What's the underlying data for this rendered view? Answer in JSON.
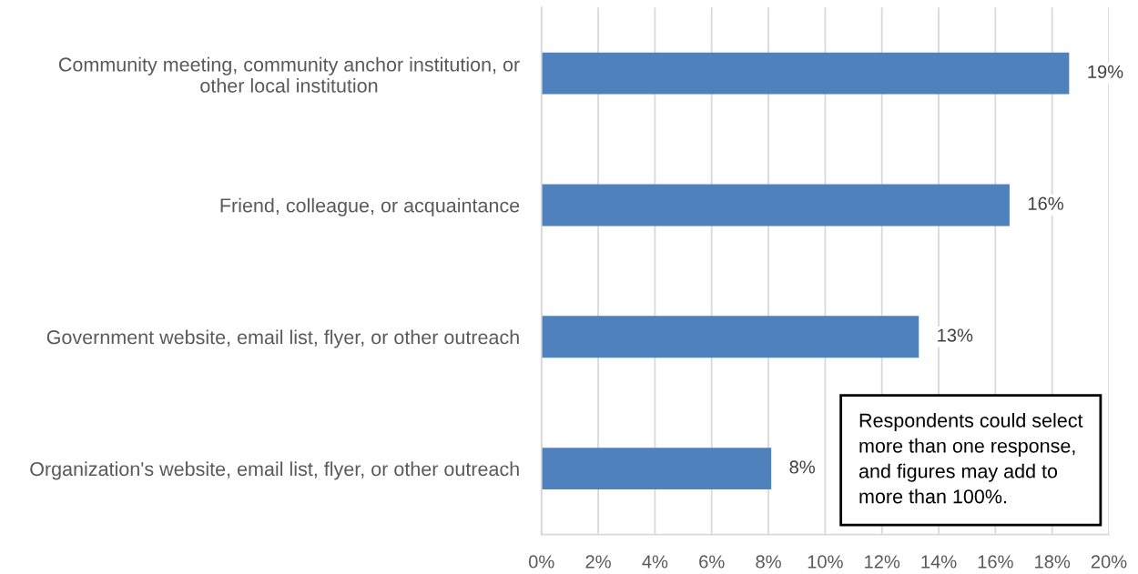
{
  "chart_data": {
    "type": "bar",
    "orientation": "horizontal",
    "categories": [
      "Community meeting, community anchor institution, or\nother local institution",
      "Friend, colleague, or acquaintance",
      "Government website, email list, flyer, or other outreach",
      "Organization's website, email list, flyer, or other outreach"
    ],
    "values": [
      18.6,
      16.5,
      13.3,
      8.1
    ],
    "value_labels": [
      "19%",
      "16%",
      "13%",
      "8%"
    ],
    "color": "#4f81bd",
    "xlim": [
      0,
      20
    ],
    "xticks": [
      {
        "value": 0,
        "label": "0%"
      },
      {
        "value": 2,
        "label": "2%"
      },
      {
        "value": 4,
        "label": "4%"
      },
      {
        "value": 6,
        "label": "6%"
      },
      {
        "value": 8,
        "label": "8%"
      },
      {
        "value": 10,
        "label": "10%"
      },
      {
        "value": 12,
        "label": "12%"
      },
      {
        "value": 14,
        "label": "14%"
      },
      {
        "value": 16,
        "label": "16%"
      },
      {
        "value": 18,
        "label": "18%"
      },
      {
        "value": 20,
        "label": "20%"
      }
    ],
    "grid": "x",
    "legend": false,
    "annotations": [
      "Respondents could select\nmore than one response,\nand figures may add to\nmore than 100%."
    ]
  }
}
